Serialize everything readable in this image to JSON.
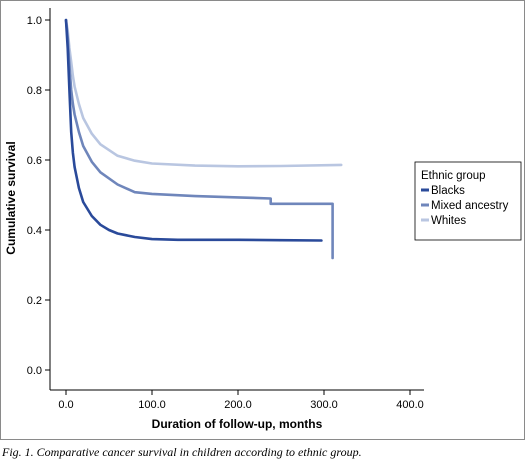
{
  "caption": "Fig. 1. Comparative cancer survival in children according to ethnic group.",
  "chart_data": {
    "type": "line",
    "title": "",
    "xlabel": "Duration of follow-up, months",
    "ylabel": "Cumulative survival",
    "xlim": [
      0,
      400
    ],
    "ylim": [
      0,
      1.0
    ],
    "xticks": [
      "0.0",
      "100.0",
      "200.0",
      "300.0",
      "400.0"
    ],
    "yticks": [
      "0.0",
      "0.2",
      "0.4",
      "0.6",
      "0.8",
      "1.0"
    ],
    "grid": false,
    "legend": {
      "title": "Ethnic group",
      "placement": "right",
      "entries": [
        "Blacks",
        "Mixed ancestry",
        "Whites"
      ]
    },
    "series": [
      {
        "name": "Blacks",
        "color": "#2a4a9a",
        "x": [
          0,
          2,
          4,
          6,
          8,
          10,
          15,
          20,
          30,
          40,
          50,
          60,
          80,
          100,
          130,
          160,
          200,
          250,
          297
        ],
        "y": [
          1.0,
          0.92,
          0.8,
          0.68,
          0.62,
          0.58,
          0.52,
          0.48,
          0.44,
          0.415,
          0.4,
          0.39,
          0.38,
          0.374,
          0.372,
          0.372,
          0.372,
          0.371,
          0.37
        ]
      },
      {
        "name": "Mixed ancestry",
        "color": "#6f86bb",
        "x": [
          0,
          2,
          4,
          6,
          8,
          10,
          15,
          20,
          30,
          40,
          60,
          80,
          100,
          150,
          200,
          238,
          238,
          310,
          310
        ],
        "y": [
          1.0,
          0.95,
          0.87,
          0.8,
          0.76,
          0.73,
          0.68,
          0.64,
          0.595,
          0.565,
          0.53,
          0.508,
          0.503,
          0.497,
          0.493,
          0.49,
          0.475,
          0.475,
          0.32
        ]
      },
      {
        "name": "Whites",
        "color": "#b9c6e1",
        "x": [
          0,
          2,
          4,
          6,
          8,
          10,
          15,
          20,
          30,
          40,
          60,
          80,
          100,
          150,
          200,
          250,
          320
        ],
        "y": [
          1.0,
          0.97,
          0.92,
          0.88,
          0.84,
          0.81,
          0.76,
          0.72,
          0.675,
          0.645,
          0.612,
          0.598,
          0.59,
          0.584,
          0.582,
          0.583,
          0.586
        ]
      }
    ]
  }
}
